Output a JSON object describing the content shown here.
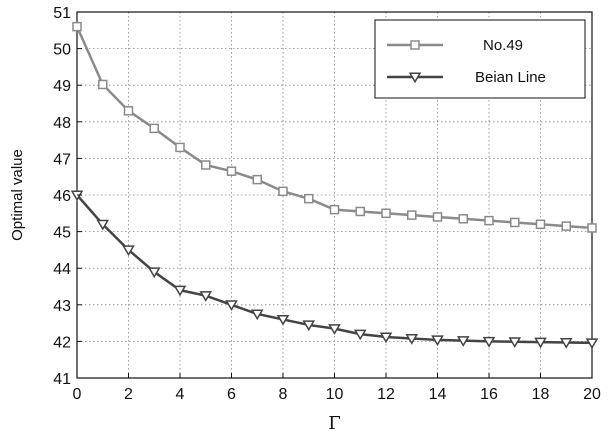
{
  "chart_data": {
    "type": "line",
    "xlabel": "Γ",
    "ylabel": "Optimal value",
    "xlim": [
      0,
      20
    ],
    "ylim": [
      41,
      51
    ],
    "xticks": [
      0,
      2,
      4,
      6,
      8,
      10,
      12,
      14,
      16,
      18,
      20
    ],
    "yticks": [
      41,
      42,
      43,
      44,
      45,
      46,
      47,
      48,
      49,
      50,
      51
    ],
    "grid": true,
    "legend_position": "top-right",
    "x": [
      0,
      1,
      2,
      3,
      4,
      5,
      6,
      7,
      8,
      9,
      10,
      11,
      12,
      13,
      14,
      15,
      16,
      17,
      18,
      19,
      20
    ],
    "series": [
      {
        "name": "No.49",
        "marker": "square",
        "color": "#8a8a8a",
        "values": [
          50.6,
          49.02,
          48.3,
          47.82,
          47.3,
          46.82,
          46.65,
          46.42,
          46.1,
          45.9,
          45.6,
          45.55,
          45.5,
          45.45,
          45.4,
          45.35,
          45.3,
          45.25,
          45.2,
          45.15,
          45.1
        ]
      },
      {
        "name": "Beian Line",
        "marker": "triangle-down",
        "color": "#444444",
        "values": [
          46.0,
          45.2,
          44.5,
          43.9,
          43.4,
          43.25,
          43.0,
          42.75,
          42.6,
          42.45,
          42.35,
          42.2,
          42.12,
          42.08,
          42.04,
          42.02,
          42.0,
          41.99,
          41.98,
          41.97,
          41.96
        ]
      }
    ]
  }
}
